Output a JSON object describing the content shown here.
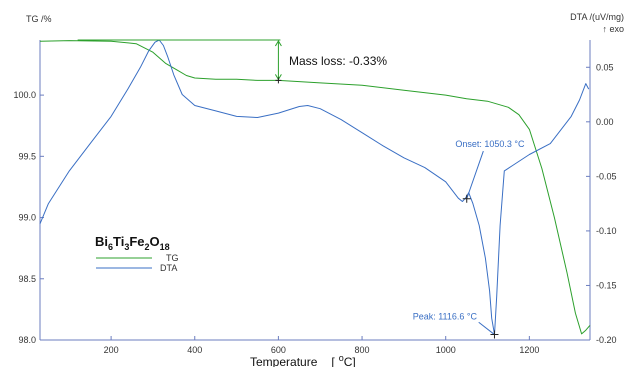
{
  "chart_data": {
    "type": "line",
    "title": "Bi6Ti3Fe2O18",
    "compound": {
      "parts": [
        "Bi",
        "6",
        "Ti",
        "3",
        "Fe",
        "2",
        "O",
        "18"
      ]
    },
    "xlabel": "Temperature [°C]",
    "xlabel_parts": {
      "word": "Temperature",
      "bracket_open": "[",
      "degree": "o",
      "unit": "C]"
    },
    "ylabel_left": "TG /%",
    "ylabel_right": "DTA /(uV/mg)",
    "ylabel_right_sub": "↑ exo",
    "xlim": [
      30,
      1345
    ],
    "ylim_left": [
      98.0,
      100.45
    ],
    "ylim_right": [
      -0.2,
      0.075
    ],
    "x_ticks": [
      200,
      400,
      600,
      800,
      1000,
      1200
    ],
    "x_tick_labels": [
      "200",
      "400",
      "600",
      "800",
      "1000",
      "1200"
    ],
    "y_left_ticks": [
      98.0,
      98.5,
      99.0,
      99.5,
      100.0
    ],
    "y_left_tick_labels": [
      "98.0",
      "98.5",
      "99.0",
      "99.5",
      "100.0"
    ],
    "y_right_ticks": [
      -0.2,
      -0.15,
      -0.1,
      -0.05,
      0.0,
      0.05
    ],
    "y_right_tick_labels": [
      "-0.20",
      "-0.15",
      "-0.10",
      "-0.05",
      "0.00",
      "0.05"
    ],
    "grid": false,
    "legend": {
      "placement": "left",
      "entries": [
        "TG",
        "DTA"
      ]
    },
    "colors": {
      "TG": "#2ca02c",
      "DTA": "#3a6fc4",
      "axis": "#6b7dbf",
      "annotation": "#3a6fc4"
    },
    "series": [
      {
        "name": "TG",
        "axis": "left",
        "x": [
          30,
          100,
          200,
          260,
          300,
          330,
          360,
          380,
          400,
          450,
          500,
          550,
          600,
          700,
          800,
          900,
          1000,
          1050,
          1100,
          1150,
          1175,
          1200,
          1230,
          1260,
          1290,
          1310,
          1325,
          1335,
          1345
        ],
        "y": [
          100.44,
          100.445,
          100.44,
          100.42,
          100.35,
          100.26,
          100.2,
          100.16,
          100.14,
          100.13,
          100.13,
          100.12,
          100.12,
          100.1,
          100.08,
          100.04,
          100.0,
          99.97,
          99.95,
          99.9,
          99.84,
          99.72,
          99.4,
          99.0,
          98.55,
          98.22,
          98.05,
          98.08,
          98.12
        ]
      },
      {
        "name": "DTA",
        "axis": "right",
        "x": [
          30,
          50,
          100,
          150,
          200,
          240,
          270,
          290,
          305,
          315,
          325,
          335,
          350,
          370,
          400,
          450,
          500,
          550,
          600,
          650,
          670,
          700,
          750,
          800,
          850,
          900,
          950,
          1000,
          1030,
          1040,
          1047,
          1055,
          1065,
          1080,
          1095,
          1105,
          1110,
          1116.6,
          1122,
          1130,
          1140,
          1160,
          1200,
          1250,
          1300,
          1320,
          1335,
          1342
        ],
        "y": [
          -0.0935,
          -0.075,
          -0.045,
          -0.02,
          0.005,
          0.03,
          0.05,
          0.065,
          0.073,
          0.075,
          0.07,
          0.06,
          0.043,
          0.025,
          0.015,
          0.01,
          0.005,
          0.004,
          0.008,
          0.014,
          0.015,
          0.012,
          0.002,
          -0.01,
          -0.022,
          -0.033,
          -0.042,
          -0.055,
          -0.07,
          -0.073,
          -0.07,
          -0.065,
          -0.075,
          -0.095,
          -0.125,
          -0.155,
          -0.18,
          -0.195,
          -0.16,
          -0.095,
          -0.045,
          -0.04,
          -0.03,
          -0.02,
          0.005,
          0.02,
          0.035,
          0.03
        ]
      }
    ],
    "annotations": {
      "mass_loss": {
        "label": "Mass loss: -0.33%",
        "x": 600,
        "y_top": 100.45,
        "y_bottom": 100.12
      },
      "onset": {
        "label": "Onset: 1050.3 °C",
        "x": 1050.3,
        "y": -0.0705,
        "label_x": 1090,
        "label_y": -0.025
      },
      "peak": {
        "label": "Peak: 1116.6 °C",
        "x": 1116.6,
        "y": -0.195,
        "label_x": 945,
        "label_y": -0.181
      }
    }
  }
}
